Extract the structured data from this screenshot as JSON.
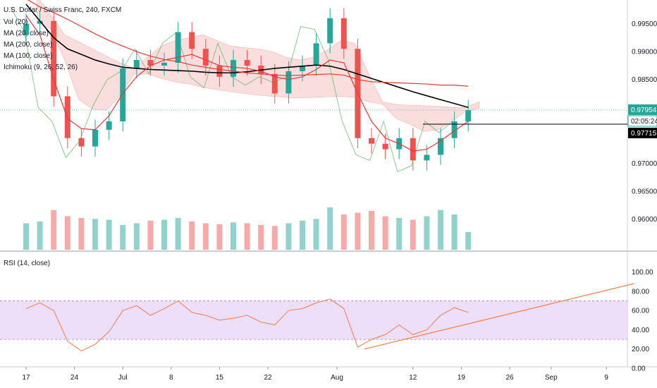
{
  "legend": {
    "symbol": "U.S. Dollar / Swiss Franc, 240, FXCM",
    "indicators": [
      "Vol (20)",
      "MA (20, close)",
      "MA (200, close)",
      "MA (100, close)",
      "Ichimoku (9, 26, 52, 26)"
    ]
  },
  "rsi_pane": {
    "title": "RSI (14, close)"
  },
  "price_badges": {
    "last": "0.97954",
    "countdown": "02:05:24",
    "level": "0.97715"
  },
  "colors": {
    "up": "#26a69a",
    "down": "#ef5350",
    "ma_black": "#000000",
    "ma_red": "#e53935",
    "ichimoku_cloud": "#f6c4c4",
    "ichimoku_green": "#4caf50",
    "rsi_line": "#f57c4b",
    "rsi_band": "#e8d7f7",
    "last_badge": "#26a69a",
    "level_badge": "#000000"
  },
  "chart_data": [
    {
      "type": "candlestick",
      "title": "U.S. Dollar / Swiss Franc, 240, FXCM",
      "x_ticks": [
        "17",
        "24",
        "Jul",
        "8",
        "15",
        "22",
        "Aug",
        "12",
        "19",
        "26",
        "Sep",
        "9"
      ],
      "y_ticks": [
        "0.99500",
        "0.99000",
        "0.98500",
        "0.98000",
        "0.97500",
        "0.97000",
        "0.96500",
        "0.96000"
      ],
      "ylim": [
        0.9555,
        0.9985
      ],
      "x": [
        "06-17",
        "06-19",
        "06-21",
        "06-23",
        "06-25",
        "06-27",
        "06-29",
        "07-01",
        "07-03",
        "07-05",
        "07-07",
        "07-09",
        "07-11",
        "07-13",
        "07-15",
        "07-17",
        "07-19",
        "07-21",
        "07-23",
        "07-25",
        "07-27",
        "07-29",
        "07-31",
        "08-02",
        "08-04",
        "08-06",
        "08-08",
        "08-10",
        "08-12",
        "08-14",
        "08-16",
        "08-18",
        "08-20"
      ],
      "close": [
        0.995,
        0.9955,
        0.982,
        0.9745,
        0.973,
        0.976,
        0.9775,
        0.987,
        0.9885,
        0.9875,
        0.988,
        0.9935,
        0.9905,
        0.9875,
        0.9855,
        0.9885,
        0.9875,
        0.986,
        0.9825,
        0.9865,
        0.9875,
        0.9915,
        0.996,
        0.9905,
        0.9745,
        0.9735,
        0.9725,
        0.9745,
        0.9705,
        0.9715,
        0.9745,
        0.9775,
        0.9795
      ],
      "series": [
        {
          "name": "MA (200, close)",
          "values": [
            0.9985,
            0.9955,
            0.9925,
            0.9905,
            0.9895,
            0.9885,
            0.9878,
            0.9872,
            0.987,
            0.9868,
            0.9867,
            0.9866,
            0.9865,
            0.9863,
            0.9862,
            0.9862,
            0.9864,
            0.9867,
            0.987,
            0.9872,
            0.9874,
            0.9876,
            0.9874,
            0.9868,
            0.986,
            0.9852,
            0.9844,
            0.9836,
            0.9828,
            0.9821,
            0.9814,
            0.9807,
            0.98
          ]
        },
        {
          "name": "MA (100, close)",
          "values": [
            0.9995,
            0.998,
            0.997,
            0.9958,
            0.9945,
            0.9932,
            0.992,
            0.991,
            0.99,
            0.9892,
            0.9886,
            0.9882,
            0.9876,
            0.9872,
            0.9868,
            0.9865,
            0.9862,
            0.986,
            0.9858,
            0.9857,
            0.9858,
            0.9859,
            0.986,
            0.9858,
            0.985,
            0.9846,
            0.9845,
            0.9844,
            0.9843,
            0.9842,
            0.984,
            0.984,
            0.9838
          ]
        },
        {
          "name": "MA (20, close)",
          "values": [
            0.9965,
            0.993,
            0.985,
            0.978,
            0.9762,
            0.976,
            0.9785,
            0.9825,
            0.9855,
            0.9875,
            0.9885,
            0.989,
            0.9895,
            0.9885,
            0.9875,
            0.9872,
            0.987,
            0.9865,
            0.9855,
            0.985,
            0.9855,
            0.9868,
            0.9885,
            0.988,
            0.9825,
            0.9775,
            0.9745,
            0.9735,
            0.9722,
            0.9725,
            0.974,
            0.9758,
            0.9775
          ]
        }
      ],
      "volume": [
        30,
        32,
        45,
        38,
        36,
        35,
        34,
        28,
        30,
        33,
        34,
        36,
        32,
        30,
        29,
        31,
        30,
        28,
        27,
        30,
        33,
        35,
        48,
        40,
        42,
        44,
        38,
        36,
        34,
        38,
        45,
        40,
        20
      ]
    },
    {
      "type": "line",
      "title": "RSI (14, close)",
      "y_ticks": [
        "100.00",
        "80.00",
        "60.00",
        "40.00",
        "20.00",
        "0.00"
      ],
      "ylim": [
        0,
        110
      ],
      "bands": [
        30,
        70
      ],
      "x": [
        "06-17",
        "06-19",
        "06-21",
        "06-23",
        "06-25",
        "06-27",
        "06-29",
        "07-01",
        "07-03",
        "07-05",
        "07-07",
        "07-09",
        "07-11",
        "07-13",
        "07-15",
        "07-17",
        "07-19",
        "07-21",
        "07-23",
        "07-25",
        "07-27",
        "07-29",
        "07-31",
        "08-02",
        "08-04",
        "08-06",
        "08-08",
        "08-10",
        "08-12",
        "08-14",
        "08-16",
        "08-18",
        "08-20"
      ],
      "values": [
        62,
        68,
        60,
        28,
        18,
        25,
        38,
        60,
        65,
        55,
        62,
        70,
        58,
        55,
        50,
        52,
        55,
        48,
        45,
        60,
        62,
        68,
        72,
        62,
        22,
        30,
        35,
        45,
        35,
        40,
        55,
        63,
        58
      ],
      "trendline": {
        "x": [
          "08-05",
          "09-13"
        ],
        "y": [
          20,
          88
        ]
      }
    }
  ]
}
